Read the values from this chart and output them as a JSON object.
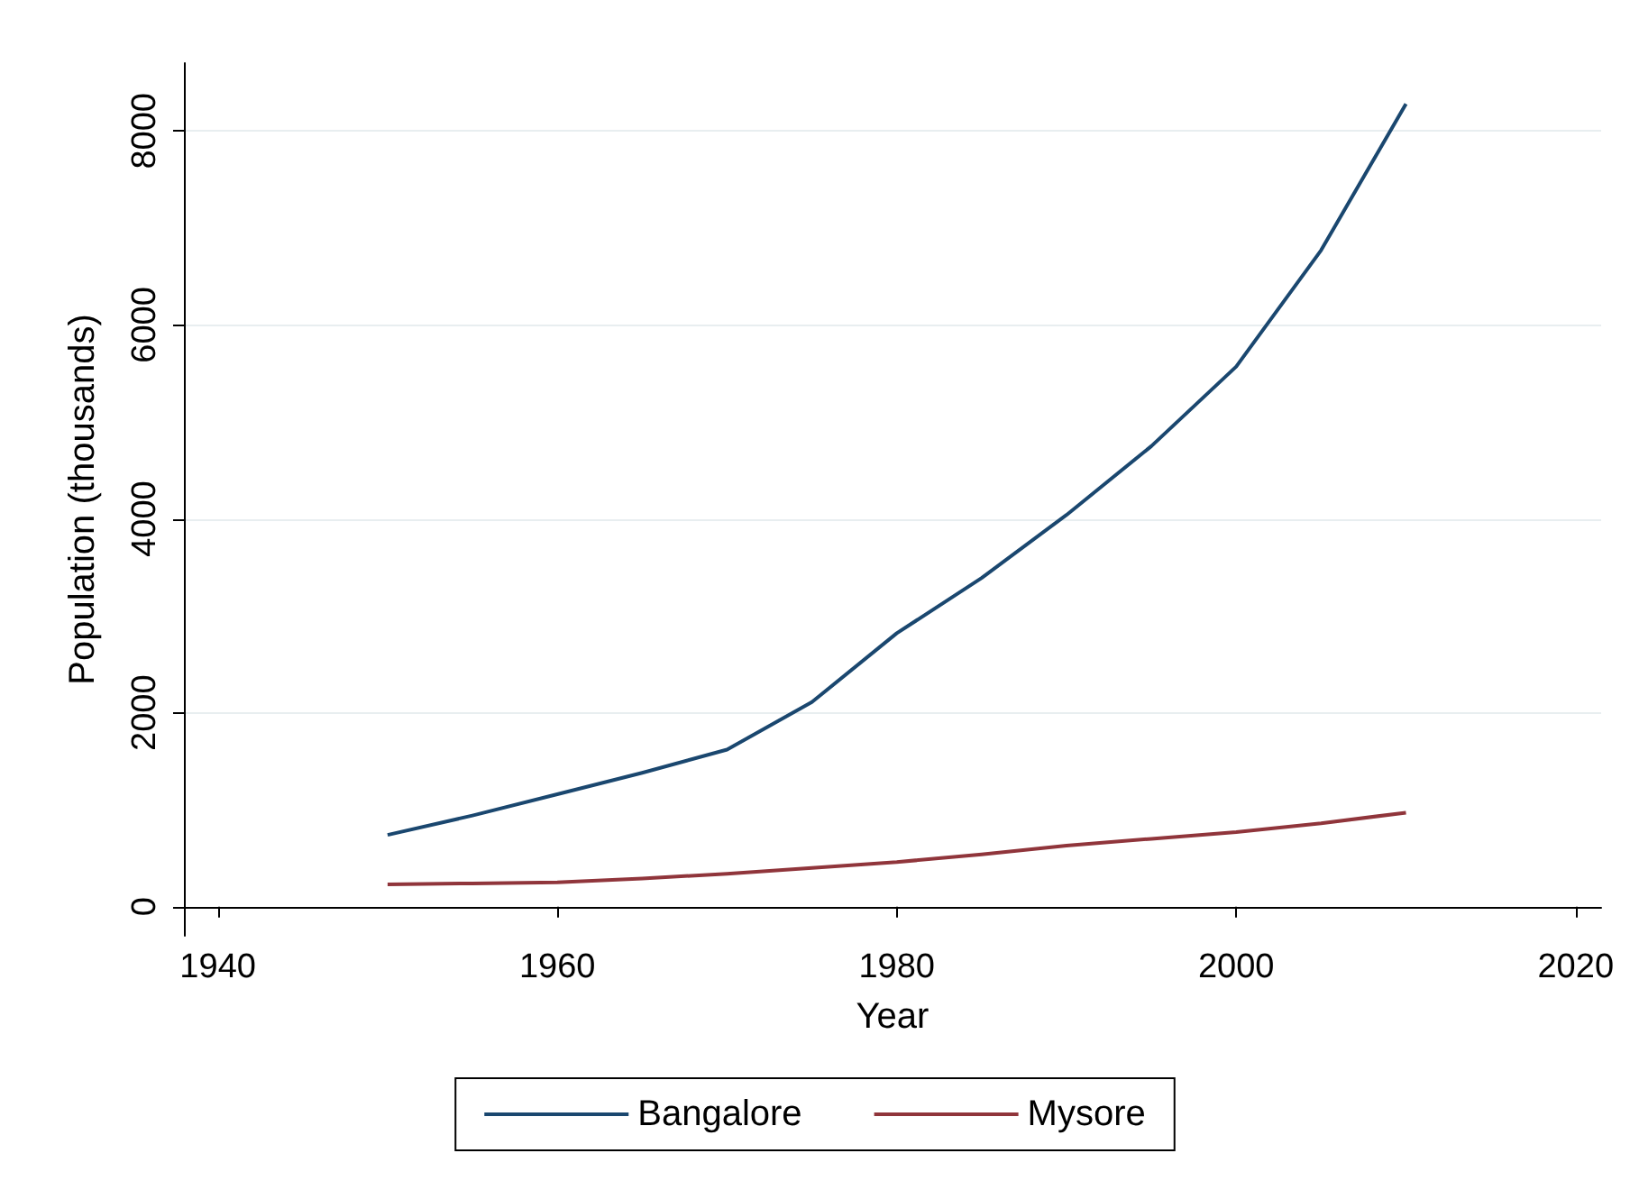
{
  "chart_data": {
    "type": "line",
    "xlabel": "Year",
    "ylabel": "Population (thousands)",
    "x": [
      1950,
      1955,
      1960,
      1965,
      1970,
      1975,
      1980,
      1985,
      1990,
      1995,
      2000,
      2005,
      2010
    ],
    "series": [
      {
        "name": "Bangalore",
        "color": "#1a476f",
        "values": [
          740,
          940,
          1160,
          1380,
          1620,
          2110,
          2820,
          3390,
          4040,
          4750,
          5570,
          6770,
          8280
        ]
      },
      {
        "name": "Mysore",
        "color": "#90353b",
        "values": [
          230,
          240,
          250,
          290,
          340,
          400,
          460,
          540,
          630,
          700,
          770,
          860,
          970
        ]
      }
    ],
    "xlim": [
      1938,
      2021.5
    ],
    "xticks": [
      1940,
      1960,
      1980,
      2000,
      2020
    ],
    "ylim": [
      -300,
      8700
    ],
    "yticks": [
      0,
      2000,
      4000,
      6000,
      8000
    ],
    "grid": "y",
    "legend": "bottom",
    "marker": "none",
    "line_style": "solid"
  }
}
